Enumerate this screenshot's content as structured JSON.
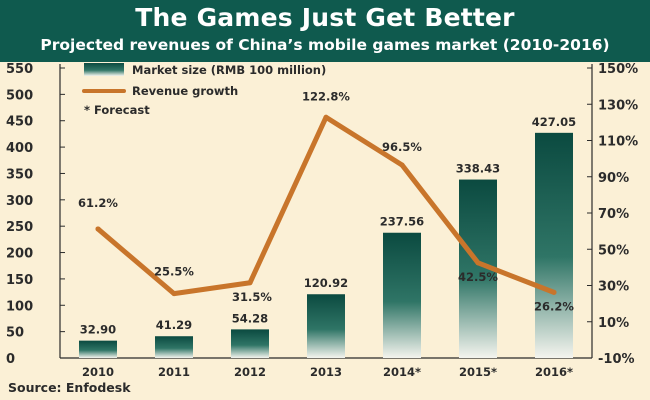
{
  "title": "The Games Just Get Better",
  "subtitle": "Projected revenues of China’s mobile games market (2010-2016)",
  "source": "Source: Enfodesk",
  "colors": {
    "header_bg": "#0f5a4e",
    "bar_dark": "#0d4d43",
    "line": "#c8752b",
    "background": "#fbf0d6"
  },
  "chart_data": {
    "type": "bar",
    "categories": [
      "2010",
      "2011",
      "2012",
      "2013",
      "2014*",
      "2015*",
      "2016*"
    ],
    "series": [
      {
        "name": "Market size (RMB 100 million)",
        "type": "bar",
        "axis": "left",
        "values": [
          32.9,
          41.29,
          54.28,
          120.92,
          237.56,
          338.43,
          427.05
        ],
        "labels": [
          "32.90",
          "41.29",
          "54.28",
          "120.92",
          "237.56",
          "338.43",
          "427.05"
        ]
      },
      {
        "name": "Revenue growth",
        "type": "line",
        "axis": "right",
        "values": [
          61.2,
          25.5,
          31.5,
          122.8,
          96.5,
          42.5,
          26.2
        ],
        "labels": [
          "61.2%",
          "25.5%",
          "31.5%",
          "122.8%",
          "96.5%",
          "42.5%",
          "26.2%"
        ]
      }
    ],
    "left_axis": {
      "range": [
        0,
        550
      ],
      "ticks": [
        "0",
        "50",
        "100",
        "150",
        "200",
        "250",
        "300",
        "350",
        "400",
        "450",
        "500",
        "550"
      ]
    },
    "right_axis": {
      "range": [
        -10,
        150
      ],
      "ticks": [
        "-10%",
        "10%",
        "30%",
        "50%",
        "70%",
        "90%",
        "110%",
        "130%",
        "150%"
      ]
    },
    "legend": {
      "placement": "top-left",
      "bar_label": "Market size (RMB 100 million)",
      "line_label": "Revenue growth",
      "note": "* Forecast"
    },
    "grid": false
  }
}
